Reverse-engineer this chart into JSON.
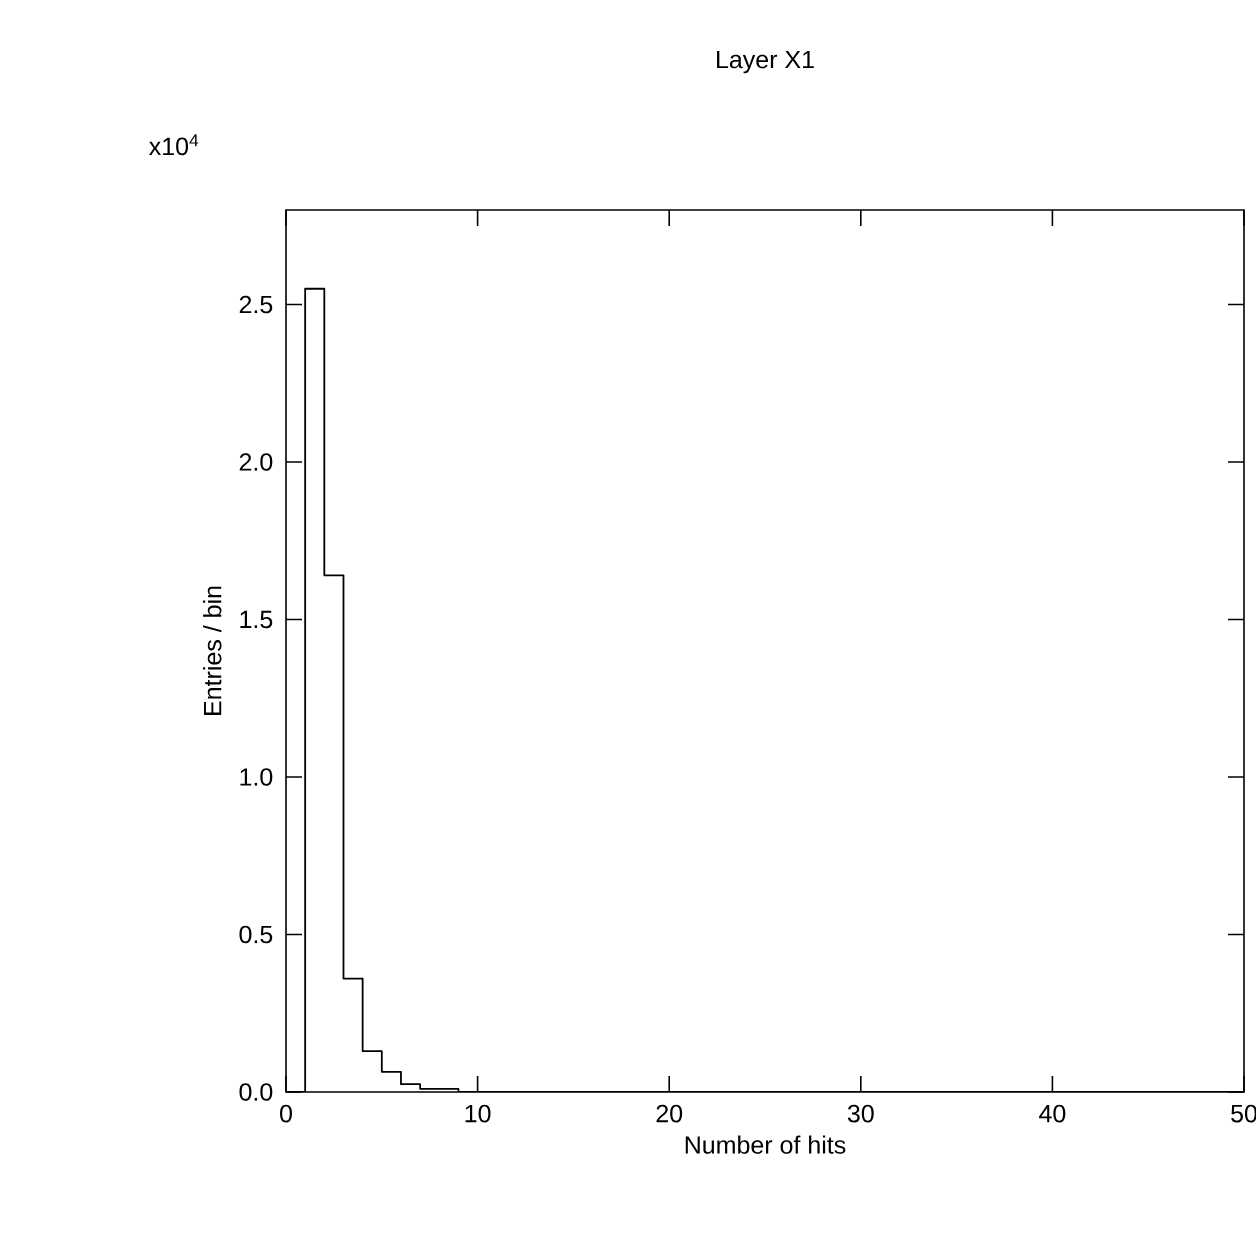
{
  "chart_data": {
    "type": "histogram",
    "title": "Layer X1",
    "xlabel": "Number of hits",
    "ylabel": "Entries / bin",
    "annotations": [
      "x10$^{4}$"
    ],
    "bins": [
      0,
      1,
      2,
      3,
      4,
      5,
      6,
      7,
      8,
      9,
      10,
      11,
      12,
      13,
      14,
      15,
      16,
      17,
      18,
      19,
      20,
      21,
      22,
      23,
      24,
      25,
      26,
      27,
      28,
      29,
      30,
      31,
      32,
      33,
      34,
      35,
      36,
      37,
      38,
      39,
      40,
      41,
      42,
      43,
      44,
      45,
      46,
      47,
      48,
      49,
      50
    ],
    "values": [
      0,
      2.55,
      1.64,
      0.36,
      0.13,
      0.064,
      0.025,
      0.01,
      0.01,
      0,
      0,
      0,
      0,
      0,
      0,
      0,
      0,
      0,
      0,
      0,
      0,
      0,
      0,
      0,
      0,
      0,
      0,
      0,
      0,
      0,
      0,
      0,
      0,
      0,
      0,
      0,
      0,
      0,
      0,
      0,
      0,
      0,
      0,
      0,
      0,
      0,
      0,
      0,
      0,
      0
    ],
    "color": "#000000",
    "xlim": [
      0,
      50
    ],
    "xticks": [
      0,
      10,
      20,
      30,
      40,
      50
    ],
    "ylim": [
      0,
      2.8
    ],
    "yticks": [
      {
        "value": 0,
        "label": "0.0"
      },
      {
        "value": 0.5,
        "label": "0.5"
      },
      {
        "value": 1,
        "label": "1.0"
      },
      {
        "value": 1.5,
        "label": "1.5"
      },
      {
        "value": 2,
        "label": "2.0"
      },
      {
        "value": 2.5,
        "label": "2.5"
      }
    ],
    "grid": false
  }
}
